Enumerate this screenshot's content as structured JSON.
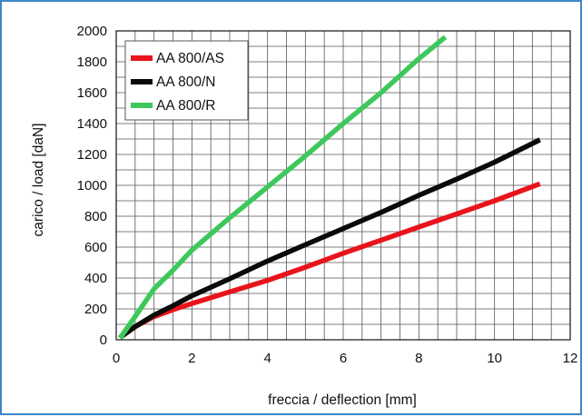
{
  "chart_data": {
    "type": "line",
    "xlabel": "freccia / deflection [mm]",
    "ylabel": "carico / load [daN]",
    "xlim": [
      0,
      12
    ],
    "ylim": [
      0,
      2000
    ],
    "x_ticks": [
      "0",
      "2",
      "4",
      "6",
      "8",
      "10",
      "12"
    ],
    "y_ticks": [
      "0",
      "200",
      "400",
      "600",
      "800",
      "1000",
      "1200",
      "1400",
      "1600",
      "1800",
      "2000"
    ],
    "x_grid_step": 0.5,
    "y_grid_step": 100,
    "grid": true,
    "legend_position": "top-left",
    "series": [
      {
        "name": "AA 800/AS",
        "color": "#e8141c",
        "points": [
          [
            0.1,
            15
          ],
          [
            0.5,
            85
          ],
          [
            1,
            150
          ],
          [
            1.5,
            195
          ],
          [
            2,
            235
          ],
          [
            3,
            310
          ],
          [
            4,
            385
          ],
          [
            5,
            470
          ],
          [
            6,
            560
          ],
          [
            7,
            645
          ],
          [
            8,
            730
          ],
          [
            9,
            815
          ],
          [
            10,
            900
          ],
          [
            11.2,
            1010
          ]
        ]
      },
      {
        "name": "AA 800/N",
        "color": "#0a0a0a",
        "points": [
          [
            0.1,
            15
          ],
          [
            0.5,
            85
          ],
          [
            1,
            160
          ],
          [
            1.5,
            220
          ],
          [
            2,
            285
          ],
          [
            3,
            395
          ],
          [
            4,
            510
          ],
          [
            5,
            615
          ],
          [
            6,
            720
          ],
          [
            7,
            825
          ],
          [
            8,
            935
          ],
          [
            9,
            1040
          ],
          [
            10,
            1150
          ],
          [
            11.2,
            1295
          ]
        ]
      },
      {
        "name": "AA 800/R",
        "color": "#3ec85c",
        "points": [
          [
            0.1,
            10
          ],
          [
            0.5,
            150
          ],
          [
            1,
            330
          ],
          [
            1.5,
            450
          ],
          [
            2,
            580
          ],
          [
            3,
            790
          ],
          [
            4,
            990
          ],
          [
            5,
            1190
          ],
          [
            6,
            1400
          ],
          [
            7,
            1600
          ],
          [
            8,
            1820
          ],
          [
            8.7,
            1960
          ]
        ]
      }
    ]
  }
}
